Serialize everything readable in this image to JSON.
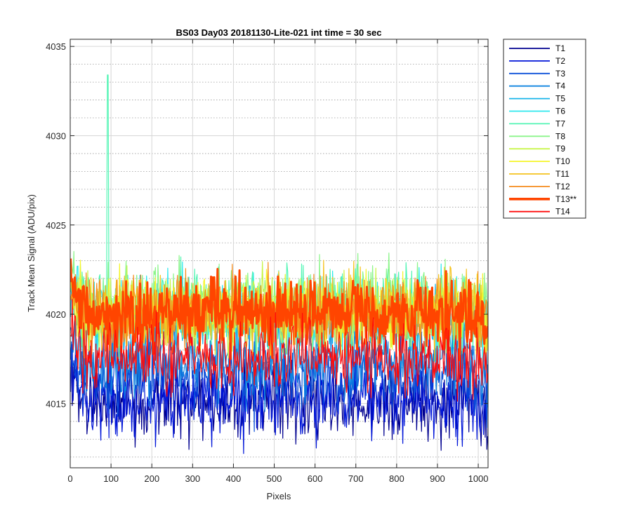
{
  "chart_data": {
    "type": "line",
    "title": "BS03 Day03 20181130-Lite-021 int time = 30 sec",
    "xlabel": "Pixels",
    "ylabel": "Track Mean Signal (ADU/pix)",
    "xlim": [
      0,
      1024
    ],
    "ylim": [
      4011.4,
      4035.4
    ],
    "xticks": [
      0,
      100,
      200,
      300,
      400,
      500,
      600,
      700,
      800,
      900,
      1000
    ],
    "yticks": [
      4015,
      4020,
      4025,
      4030,
      4035
    ],
    "y_minor_step": 1,
    "grid": true,
    "legend_position": "outside-top-right",
    "x_start": 1,
    "x_end": 1024,
    "series": [
      {
        "name": "T1",
        "color": "#00008f",
        "mean": 4015.1,
        "noise": 1.1,
        "line_width": 1.2
      },
      {
        "name": "T2",
        "color": "#0015d8",
        "mean": 4015.3,
        "noise": 1.1,
        "line_width": 1.2
      },
      {
        "name": "T3",
        "color": "#0a4fd8",
        "mean": 4016.6,
        "noise": 1.0,
        "line_width": 1.2
      },
      {
        "name": "T4",
        "color": "#0f85e0",
        "mean": 4017.3,
        "noise": 1.0,
        "line_width": 1.2
      },
      {
        "name": "T5",
        "color": "#17b5ea",
        "mean": 4019.5,
        "noise": 1.0,
        "line_width": 1.2
      },
      {
        "name": "T6",
        "color": "#2ee8ee",
        "mean": 4020.1,
        "noise": 1.1,
        "line_width": 1.2
      },
      {
        "name": "T7",
        "color": "#52f5b4",
        "mean": 4020.3,
        "noise": 1.1,
        "line_width": 1.2,
        "spike_x": 92,
        "spike_y": 4035.4
      },
      {
        "name": "T8",
        "color": "#8cf58a",
        "mean": 4020.4,
        "noise": 1.1,
        "line_width": 1.2
      },
      {
        "name": "T9",
        "color": "#c8f54a",
        "mean": 4020.3,
        "noise": 1.0,
        "line_width": 1.2
      },
      {
        "name": "T10",
        "color": "#f5f528",
        "mean": 4020.2,
        "noise": 1.0,
        "line_width": 1.2
      },
      {
        "name": "T11",
        "color": "#f5c21e",
        "mean": 4020.0,
        "noise": 1.0,
        "line_width": 1.2
      },
      {
        "name": "T12",
        "color": "#f58c1e",
        "mean": 4020.1,
        "noise": 1.1,
        "line_width": 1.2
      },
      {
        "name": "T13**",
        "color": "#ff4500",
        "mean": 4020.0,
        "noise": 0.9,
        "line_width": 3.0
      },
      {
        "name": "T14",
        "color": "#ff0a0a",
        "mean": 4017.5,
        "noise": 1.0,
        "line_width": 1.2
      }
    ]
  }
}
